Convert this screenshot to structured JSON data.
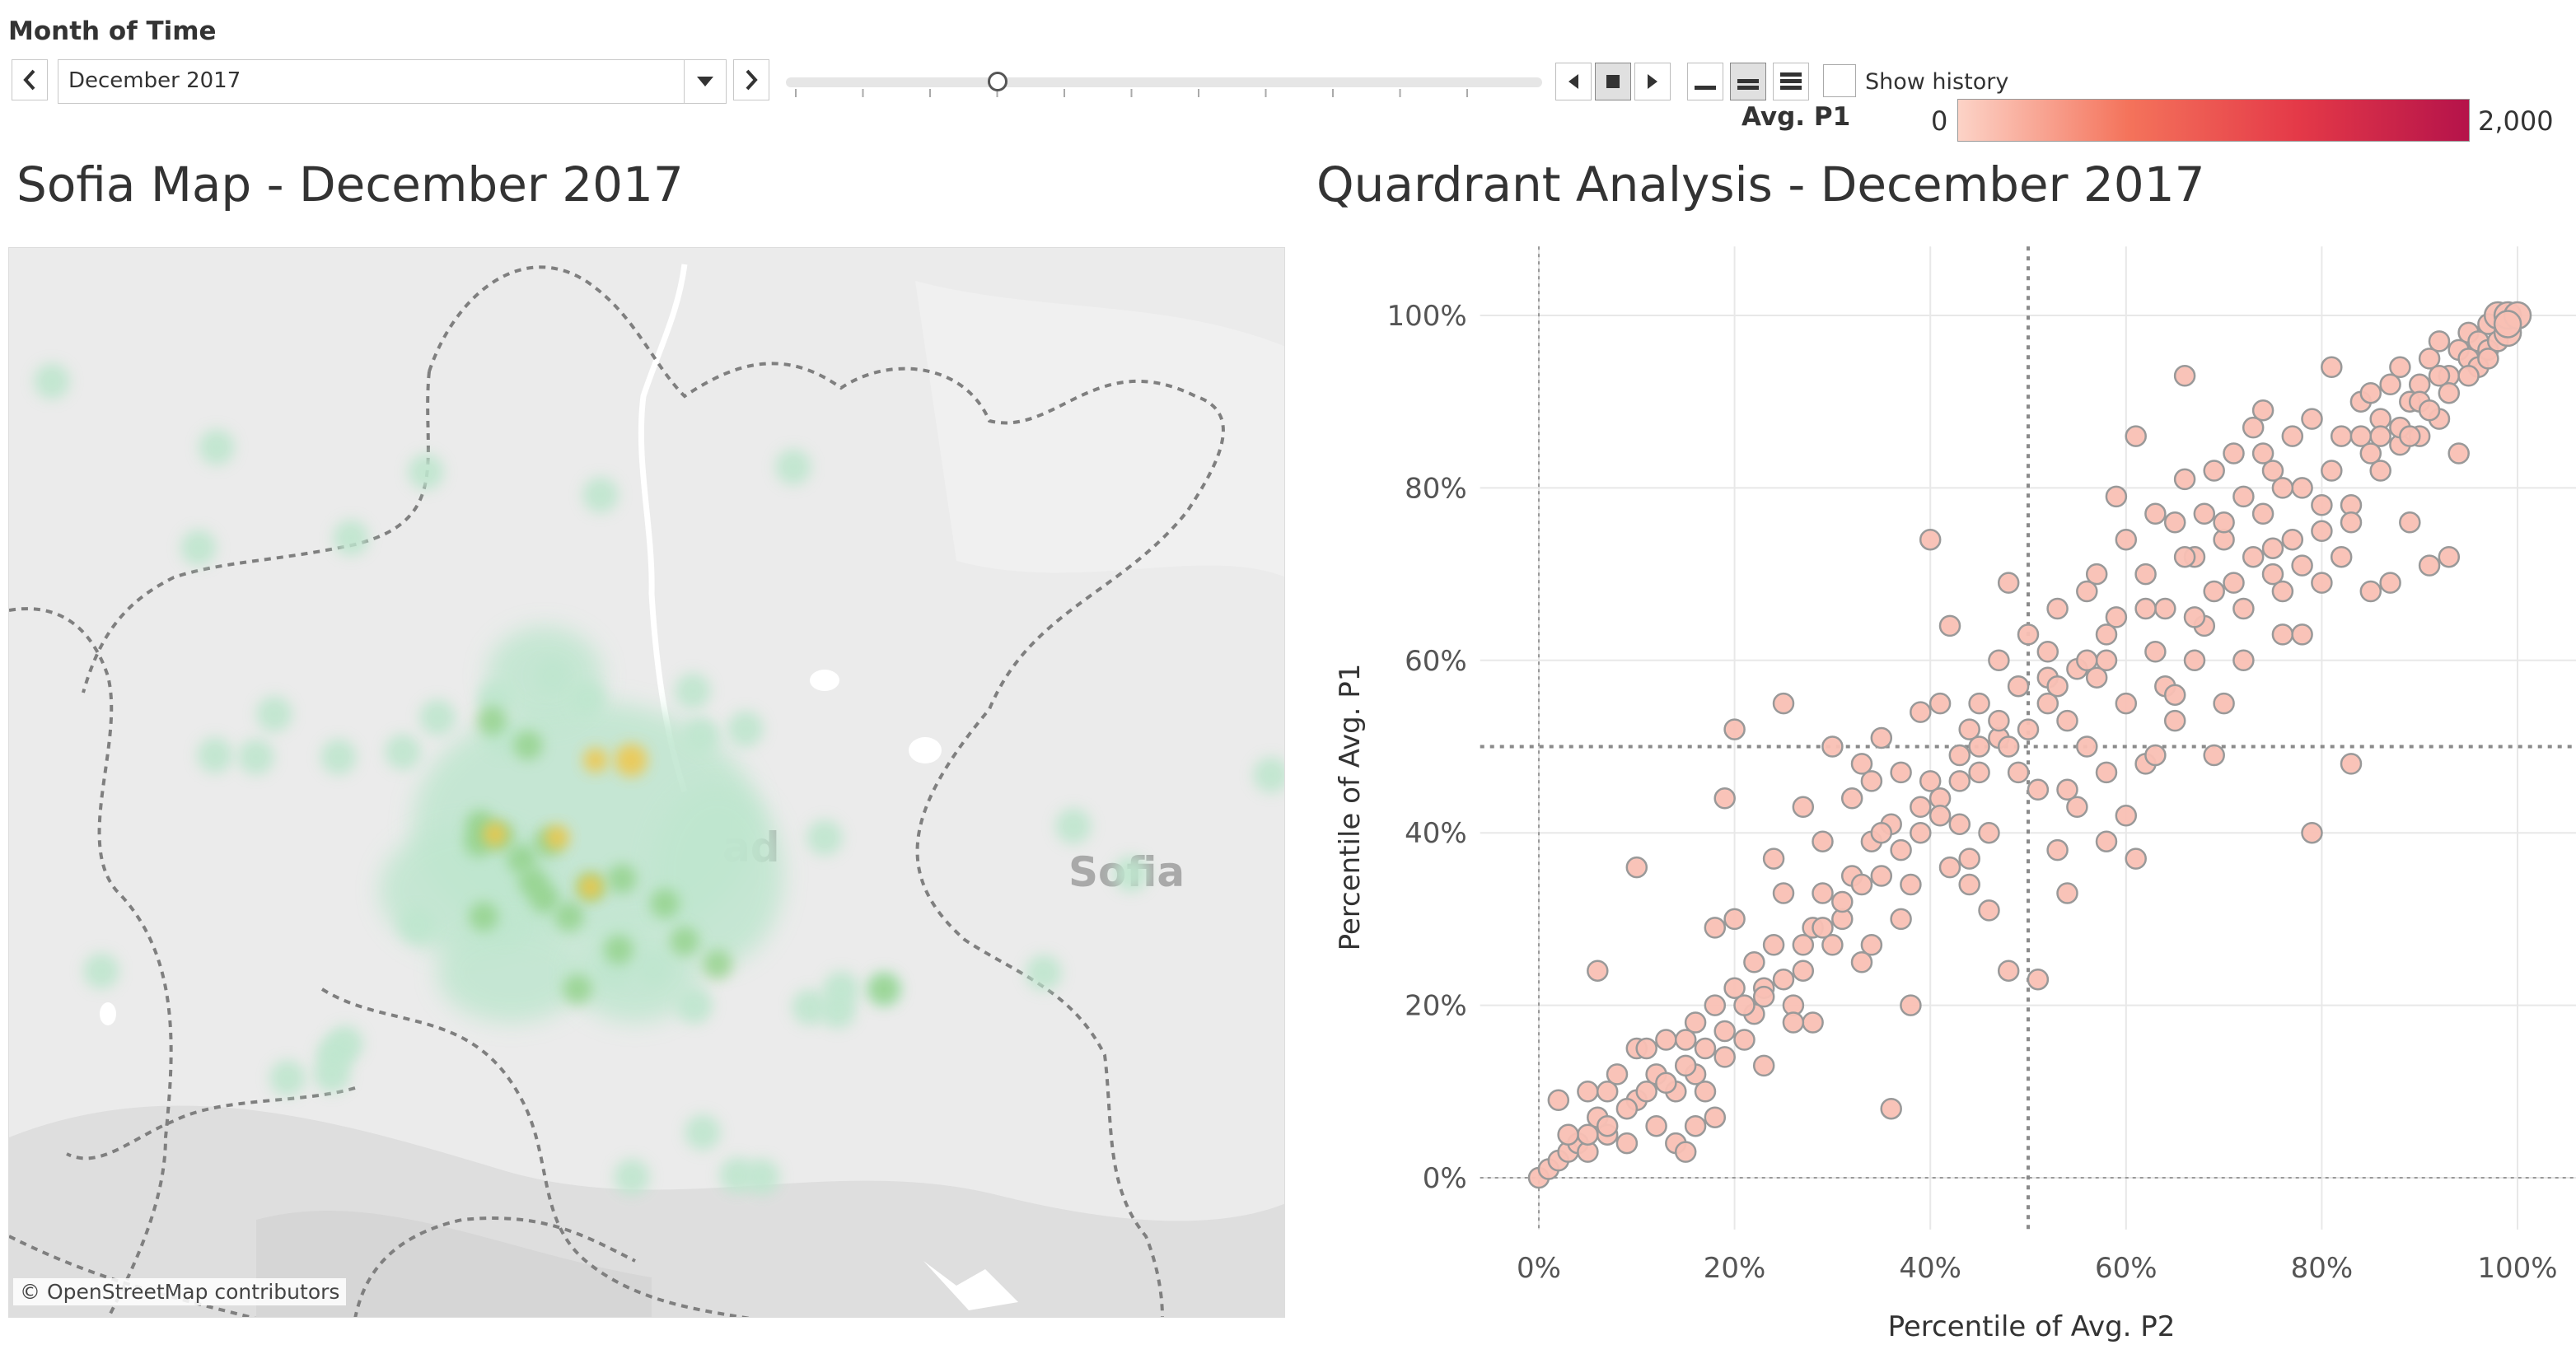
{
  "filter": {
    "title": "Month of Time",
    "selected_value": "December 2017",
    "prev_icon": "chevron-left-icon",
    "next_icon": "chevron-right-icon",
    "dropdown_icon": "chevron-down-icon",
    "slider_position": 0.28,
    "show_history_label": "Show history",
    "show_history_checked": false
  },
  "legend": {
    "title": "Avg. P1",
    "min_label": "0",
    "max_label": "2,000",
    "colors": [
      "#fcd3c7",
      "#f4735b",
      "#e43948",
      "#b5134a"
    ]
  },
  "map": {
    "title": "Sofia Map - December 2017",
    "attribution": "© OpenStreetMap contributors",
    "labels": [
      {
        "text": "ad"
      },
      {
        "text": "Sofia"
      }
    ],
    "colors": {
      "background": "#ebebeb",
      "heat_low": "#bfe6cf",
      "heat_mid": "#8fd084",
      "heat_high": "#f0c64a"
    }
  },
  "chart": {
    "title": "Quardrant Analysis - December 2017",
    "chart_data": {
      "type": "scatter",
      "title": "Quardrant Analysis - December 2017",
      "xlabel": "Percentile of Avg. P2",
      "ylabel": "Percentile of Avg. P1",
      "x_ticks": [
        "0%",
        "20%",
        "40%",
        "60%",
        "80%",
        "100%"
      ],
      "y_ticks": [
        "0%",
        "20%",
        "40%",
        "60%",
        "80%",
        "100%"
      ],
      "xlim": [
        -0.06,
        1.06
      ],
      "ylim": [
        -0.06,
        1.08
      ],
      "grid": true,
      "reference_lines": {
        "x": 0.5,
        "y": 0.5
      },
      "marker_color": "#f9c0b4",
      "marker_edge": "#999999",
      "points": [
        [
          0.0,
          0.0
        ],
        [
          0.01,
          0.01
        ],
        [
          0.02,
          0.02
        ],
        [
          0.03,
          0.03
        ],
        [
          0.02,
          0.09
        ],
        [
          0.04,
          0.04
        ],
        [
          0.05,
          0.03
        ],
        [
          0.05,
          0.1
        ],
        [
          0.06,
          0.07
        ],
        [
          0.07,
          0.1
        ],
        [
          0.07,
          0.05
        ],
        [
          0.08,
          0.12
        ],
        [
          0.09,
          0.04
        ],
        [
          0.1,
          0.09
        ],
        [
          0.1,
          0.15
        ],
        [
          0.1,
          0.36
        ],
        [
          0.12,
          0.12
        ],
        [
          0.12,
          0.06
        ],
        [
          0.13,
          0.16
        ],
        [
          0.14,
          0.1
        ],
        [
          0.14,
          0.04
        ],
        [
          0.15,
          0.03
        ],
        [
          0.15,
          0.16
        ],
        [
          0.16,
          0.18
        ],
        [
          0.16,
          0.12
        ],
        [
          0.17,
          0.1
        ],
        [
          0.18,
          0.07
        ],
        [
          0.18,
          0.2
        ],
        [
          0.18,
          0.29
        ],
        [
          0.19,
          0.14
        ],
        [
          0.19,
          0.44
        ],
        [
          0.2,
          0.3
        ],
        [
          0.2,
          0.22
        ],
        [
          0.2,
          0.52
        ],
        [
          0.21,
          0.16
        ],
        [
          0.22,
          0.19
        ],
        [
          0.22,
          0.25
        ],
        [
          0.23,
          0.22
        ],
        [
          0.23,
          0.13
        ],
        [
          0.24,
          0.27
        ],
        [
          0.24,
          0.37
        ],
        [
          0.25,
          0.33
        ],
        [
          0.25,
          0.55
        ],
        [
          0.26,
          0.2
        ],
        [
          0.27,
          0.24
        ],
        [
          0.27,
          0.43
        ],
        [
          0.28,
          0.18
        ],
        [
          0.28,
          0.29
        ],
        [
          0.29,
          0.33
        ],
        [
          0.29,
          0.39
        ],
        [
          0.3,
          0.5
        ],
        [
          0.3,
          0.27
        ],
        [
          0.31,
          0.3
        ],
        [
          0.32,
          0.35
        ],
        [
          0.32,
          0.44
        ],
        [
          0.33,
          0.48
        ],
        [
          0.33,
          0.25
        ],
        [
          0.34,
          0.39
        ],
        [
          0.34,
          0.46
        ],
        [
          0.35,
          0.51
        ],
        [
          0.35,
          0.35
        ],
        [
          0.36,
          0.41
        ],
        [
          0.36,
          0.08
        ],
        [
          0.37,
          0.3
        ],
        [
          0.37,
          0.47
        ],
        [
          0.38,
          0.2
        ],
        [
          0.38,
          0.34
        ],
        [
          0.39,
          0.54
        ],
        [
          0.39,
          0.4
        ],
        [
          0.4,
          0.46
        ],
        [
          0.4,
          0.74
        ],
        [
          0.41,
          0.44
        ],
        [
          0.41,
          0.55
        ],
        [
          0.42,
          0.36
        ],
        [
          0.42,
          0.64
        ],
        [
          0.43,
          0.49
        ],
        [
          0.43,
          0.41
        ],
        [
          0.44,
          0.52
        ],
        [
          0.44,
          0.37
        ],
        [
          0.45,
          0.47
        ],
        [
          0.45,
          0.55
        ],
        [
          0.46,
          0.31
        ],
        [
          0.46,
          0.4
        ],
        [
          0.47,
          0.6
        ],
        [
          0.47,
          0.51
        ],
        [
          0.48,
          0.24
        ],
        [
          0.48,
          0.69
        ],
        [
          0.49,
          0.47
        ],
        [
          0.49,
          0.57
        ],
        [
          0.5,
          0.52
        ],
        [
          0.5,
          0.63
        ],
        [
          0.51,
          0.45
        ],
        [
          0.51,
          0.23
        ],
        [
          0.52,
          0.58
        ],
        [
          0.52,
          0.55
        ],
        [
          0.53,
          0.38
        ],
        [
          0.53,
          0.66
        ],
        [
          0.54,
          0.33
        ],
        [
          0.54,
          0.53
        ],
        [
          0.55,
          0.59
        ],
        [
          0.55,
          0.43
        ],
        [
          0.56,
          0.68
        ],
        [
          0.56,
          0.5
        ],
        [
          0.57,
          0.58
        ],
        [
          0.57,
          0.7
        ],
        [
          0.58,
          0.47
        ],
        [
          0.58,
          0.6
        ],
        [
          0.59,
          0.79
        ],
        [
          0.59,
          0.65
        ],
        [
          0.6,
          0.55
        ],
        [
          0.6,
          0.74
        ],
        [
          0.61,
          0.37
        ],
        [
          0.61,
          0.86
        ],
        [
          0.62,
          0.48
        ],
        [
          0.62,
          0.7
        ],
        [
          0.63,
          0.77
        ],
        [
          0.63,
          0.61
        ],
        [
          0.64,
          0.66
        ],
        [
          0.64,
          0.57
        ],
        [
          0.65,
          0.76
        ],
        [
          0.65,
          0.53
        ],
        [
          0.66,
          0.93
        ],
        [
          0.66,
          0.81
        ],
        [
          0.67,
          0.6
        ],
        [
          0.67,
          0.72
        ],
        [
          0.68,
          0.77
        ],
        [
          0.68,
          0.64
        ],
        [
          0.69,
          0.49
        ],
        [
          0.69,
          0.82
        ],
        [
          0.7,
          0.74
        ],
        [
          0.7,
          0.55
        ],
        [
          0.71,
          0.69
        ],
        [
          0.71,
          0.84
        ],
        [
          0.72,
          0.79
        ],
        [
          0.72,
          0.6
        ],
        [
          0.73,
          0.87
        ],
        [
          0.73,
          0.72
        ],
        [
          0.74,
          0.89
        ],
        [
          0.74,
          0.77
        ],
        [
          0.75,
          0.7
        ],
        [
          0.75,
          0.82
        ],
        [
          0.76,
          0.68
        ],
        [
          0.76,
          0.63
        ],
        [
          0.77,
          0.86
        ],
        [
          0.77,
          0.74
        ],
        [
          0.78,
          0.8
        ],
        [
          0.78,
          0.71
        ],
        [
          0.79,
          0.88
        ],
        [
          0.79,
          0.4
        ],
        [
          0.8,
          0.75
        ],
        [
          0.8,
          0.69
        ],
        [
          0.81,
          0.94
        ],
        [
          0.81,
          0.82
        ],
        [
          0.82,
          0.86
        ],
        [
          0.82,
          0.72
        ],
        [
          0.83,
          0.78
        ],
        [
          0.83,
          0.48
        ],
        [
          0.84,
          0.9
        ],
        [
          0.84,
          0.86
        ],
        [
          0.85,
          0.68
        ],
        [
          0.85,
          0.91
        ],
        [
          0.86,
          0.82
        ],
        [
          0.86,
          0.88
        ],
        [
          0.87,
          0.92
        ],
        [
          0.87,
          0.69
        ],
        [
          0.88,
          0.85
        ],
        [
          0.88,
          0.94
        ],
        [
          0.89,
          0.76
        ],
        [
          0.89,
          0.9
        ],
        [
          0.9,
          0.86
        ],
        [
          0.9,
          0.92
        ],
        [
          0.91,
          0.71
        ],
        [
          0.91,
          0.95
        ],
        [
          0.92,
          0.88
        ],
        [
          0.92,
          0.97
        ],
        [
          0.93,
          0.72
        ],
        [
          0.93,
          0.93
        ],
        [
          0.94,
          0.84
        ],
        [
          0.94,
          0.96
        ],
        [
          0.95,
          0.95
        ],
        [
          0.95,
          0.98
        ],
        [
          0.96,
          0.94
        ],
        [
          0.96,
          0.97
        ],
        [
          0.97,
          0.96
        ],
        [
          0.97,
          0.99
        ],
        [
          0.98,
          0.97
        ],
        [
          0.98,
          1.0
        ],
        [
          0.99,
          0.98
        ],
        [
          0.99,
          1.0
        ],
        [
          1.0,
          1.0
        ],
        [
          0.95,
          0.93
        ],
        [
          0.97,
          0.95
        ],
        [
          0.99,
          0.99
        ],
        [
          0.88,
          0.87
        ],
        [
          0.9,
          0.9
        ],
        [
          0.85,
          0.84
        ],
        [
          0.92,
          0.93
        ],
        [
          0.76,
          0.8
        ],
        [
          0.74,
          0.84
        ],
        [
          0.7,
          0.76
        ],
        [
          0.66,
          0.72
        ],
        [
          0.62,
          0.66
        ],
        [
          0.58,
          0.63
        ],
        [
          0.56,
          0.6
        ],
        [
          0.53,
          0.57
        ],
        [
          0.47,
          0.53
        ],
        [
          0.45,
          0.5
        ],
        [
          0.43,
          0.46
        ],
        [
          0.41,
          0.42
        ],
        [
          0.39,
          0.43
        ],
        [
          0.37,
          0.38
        ],
        [
          0.35,
          0.4
        ],
        [
          0.33,
          0.34
        ],
        [
          0.31,
          0.32
        ],
        [
          0.29,
          0.29
        ],
        [
          0.27,
          0.27
        ],
        [
          0.25,
          0.23
        ],
        [
          0.23,
          0.21
        ],
        [
          0.21,
          0.2
        ],
        [
          0.19,
          0.17
        ],
        [
          0.17,
          0.15
        ],
        [
          0.15,
          0.13
        ],
        [
          0.13,
          0.11
        ],
        [
          0.11,
          0.1
        ],
        [
          0.09,
          0.08
        ],
        [
          0.07,
          0.06
        ],
        [
          0.05,
          0.05
        ],
        [
          0.03,
          0.05
        ],
        [
          0.06,
          0.24
        ],
        [
          0.11,
          0.15
        ],
        [
          0.16,
          0.06
        ],
        [
          0.26,
          0.18
        ],
        [
          0.34,
          0.27
        ],
        [
          0.44,
          0.34
        ],
        [
          0.48,
          0.5
        ],
        [
          0.52,
          0.61
        ],
        [
          0.54,
          0.45
        ],
        [
          0.58,
          0.39
        ],
        [
          0.6,
          0.42
        ],
        [
          0.63,
          0.49
        ],
        [
          0.65,
          0.56
        ],
        [
          0.67,
          0.65
        ],
        [
          0.69,
          0.68
        ],
        [
          0.72,
          0.66
        ],
        [
          0.75,
          0.73
        ],
        [
          0.78,
          0.63
        ],
        [
          0.8,
          0.78
        ],
        [
          0.83,
          0.76
        ],
        [
          0.86,
          0.86
        ],
        [
          0.89,
          0.86
        ],
        [
          0.91,
          0.89
        ],
        [
          0.93,
          0.91
        ]
      ]
    }
  }
}
